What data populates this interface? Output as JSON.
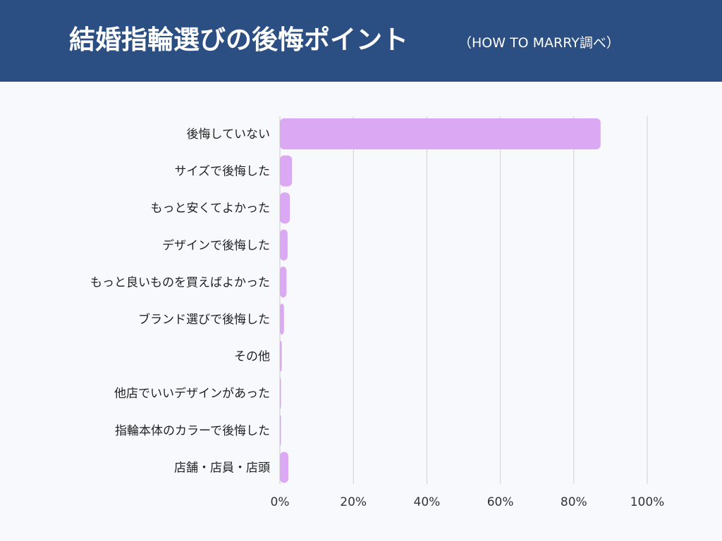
{
  "header": {
    "title": "結婚指輪選びの後悔ポイント",
    "subtitle": "（HOW TO MARRY調べ）",
    "background": "#2c4f83"
  },
  "chart_data": {
    "type": "bar",
    "orientation": "horizontal",
    "categories": [
      "後悔していない",
      "サイズで後悔した",
      "もっと安くてよかった",
      "デザインで後悔した",
      "もっと良いものを買えばよかった",
      "ブランド選びで後悔した",
      "その他",
      "他店でいいデザインがあった",
      "指輪本体のカラーで後悔した",
      "店舗・店員・店頭"
    ],
    "values": [
      87.3,
      3.3,
      2.7,
      2.1,
      1.8,
      1.1,
      0.5,
      0.3,
      0.2,
      2.3
    ],
    "xlim": [
      0,
      100
    ],
    "xticks": [
      "0%",
      "20%",
      "40%",
      "60%",
      "80%",
      "100%"
    ],
    "grid": true,
    "bar_color": "#dba9f3"
  }
}
